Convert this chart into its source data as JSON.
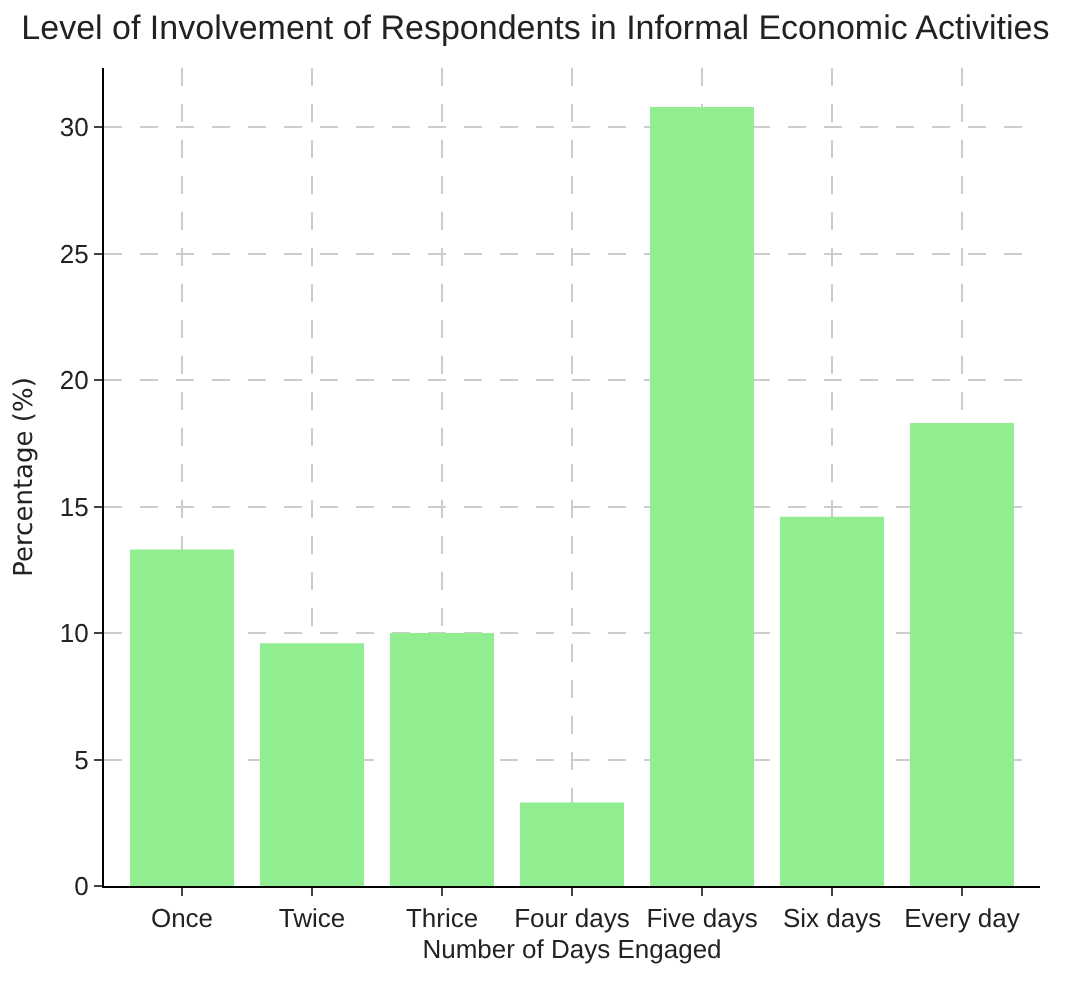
{
  "chart_data": {
    "type": "bar",
    "title": "Level of Involvement of Respondents in Informal Economic Activities",
    "xlabel": "Number of Days Engaged",
    "ylabel": "Percentage (%)",
    "categories": [
      "Once",
      "Twice",
      "Thrice",
      "Four days",
      "Five days",
      "Six days",
      "Every day"
    ],
    "values": [
      13.3,
      9.6,
      10.0,
      3.3,
      30.8,
      14.6,
      18.3
    ],
    "color": "#90ee90",
    "ylim": [
      0,
      32.34
    ],
    "yticks": [
      0,
      5,
      10,
      15,
      20,
      25,
      30
    ],
    "grid": true,
    "legend": false
  }
}
